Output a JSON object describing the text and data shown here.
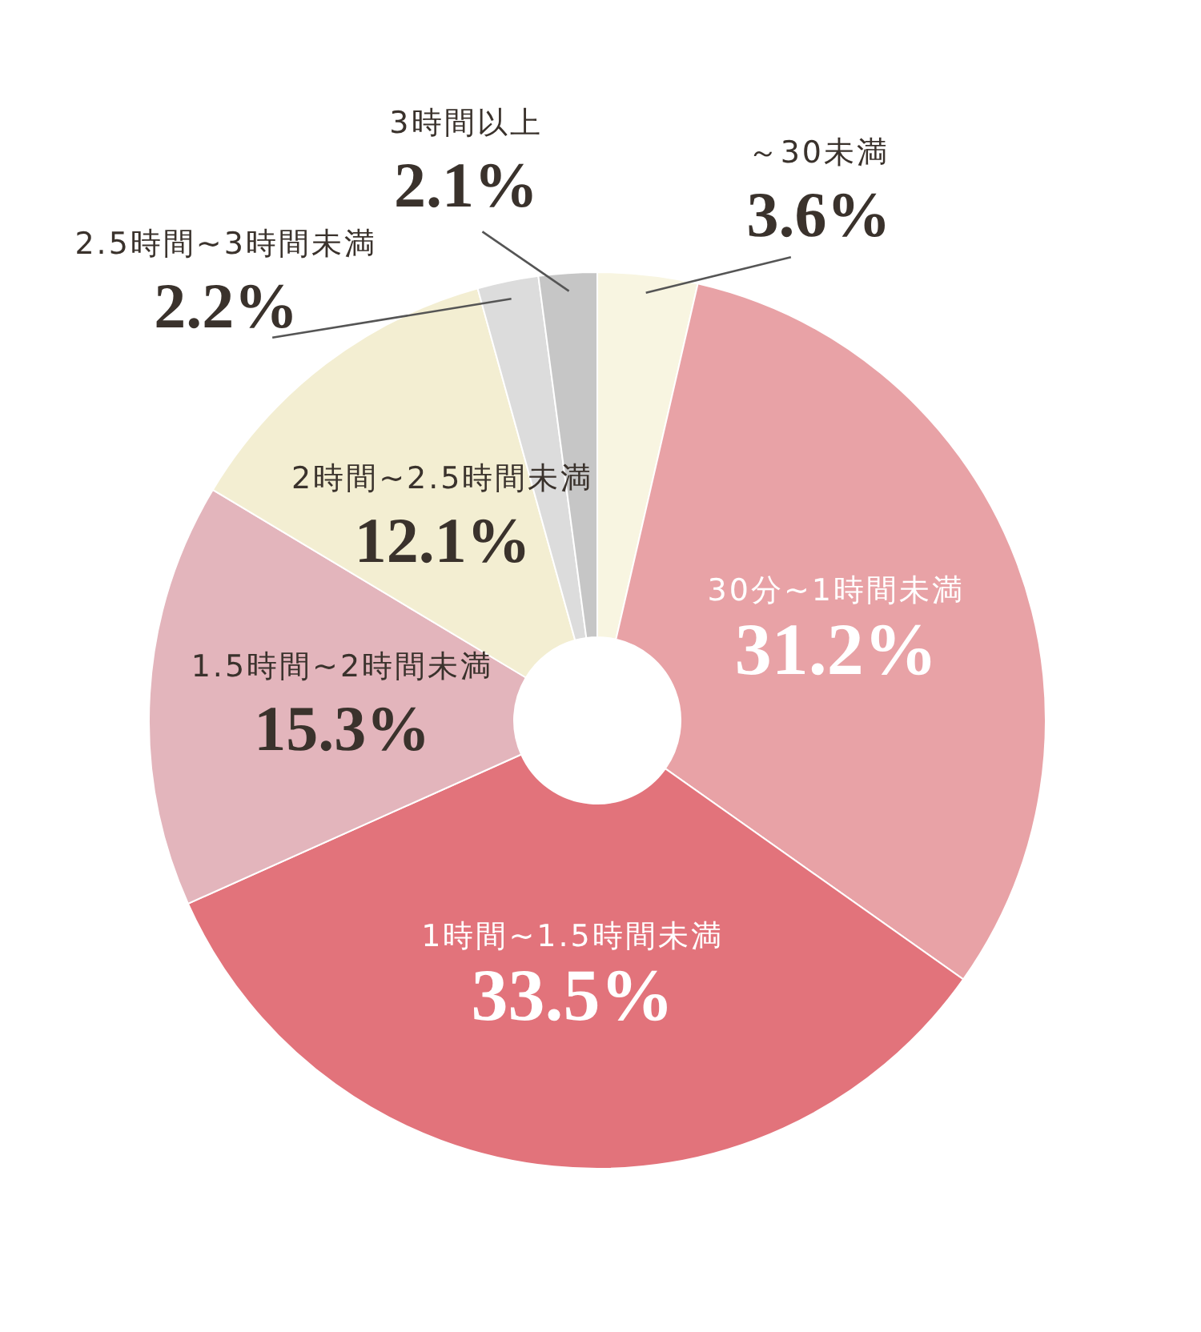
{
  "chart_data": {
    "type": "donut",
    "categories": [
      "～30未満",
      "30分~1時間未満",
      "1時間~1.5時間未満",
      "1.5時間~2時間未満",
      "2時間~2.5時間未満",
      "2.5時間~3時間未満",
      "3時間以上"
    ],
    "values": [
      3.6,
      31.2,
      33.5,
      15.3,
      12.1,
      2.2,
      2.1
    ],
    "colors": [
      "#f8f5e1",
      "#e8a2a6",
      "#e2737b",
      "#e3b5bc",
      "#f3eed2",
      "#dcdcdc",
      "#c6c6c6"
    ],
    "value_labels": [
      "3.6%",
      "31.2%",
      "33.5%",
      "15.3%",
      "12.1%",
      "2.2%",
      "2.1%"
    ]
  }
}
